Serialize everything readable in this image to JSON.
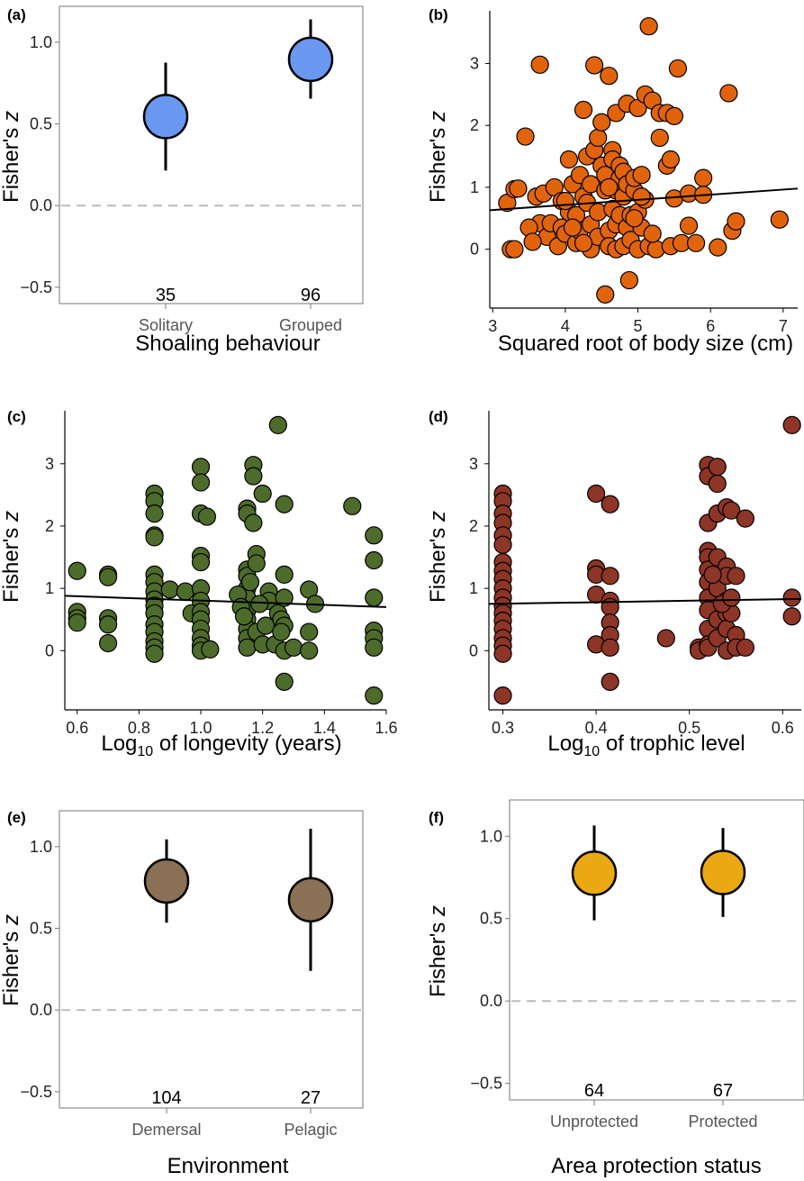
{
  "chart_data": [
    {
      "panel": "(a)",
      "type": "dot-errorbar",
      "xlabel": "Shoaling behaviour",
      "ylabel": "Fisher's z",
      "ylim": [
        -0.6,
        1.22
      ],
      "yticks": [
        -0.5,
        0.0,
        0.5,
        1.0
      ],
      "ytick_labels": [
        "−0.5",
        "0.0",
        "0.5",
        "1.0"
      ],
      "categories": [
        "Solitary",
        "Grouped"
      ],
      "estimates": [
        0.545,
        0.895
      ],
      "ci_low": [
        0.215,
        0.655
      ],
      "ci_high": [
        0.875,
        1.14
      ],
      "n": [
        "35",
        "96"
      ],
      "reference_line": 0.0,
      "color": "#6a97ef"
    },
    {
      "panel": "(b)",
      "type": "scatter",
      "xlabel": "Squared root of body size (cm)",
      "ylabel": "Fisher's z",
      "xlim": [
        2.96,
        7.2
      ],
      "ylim": [
        -0.95,
        3.85
      ],
      "xticks": [
        3,
        4,
        5,
        6,
        7
      ],
      "xtick_labels": [
        "3",
        "4",
        "5",
        "6",
        "7"
      ],
      "yticks": [
        0,
        1,
        2,
        3
      ],
      "ytick_labels": [
        "0",
        "1",
        "2",
        "3"
      ],
      "trend": {
        "x": [
          2.96,
          7.2
        ],
        "y": [
          0.63,
          0.98
        ]
      },
      "points": [
        [
          3.2,
          0.75
        ],
        [
          3.25,
          0.0
        ],
        [
          3.3,
          0.0
        ],
        [
          3.3,
          0.97
        ],
        [
          3.35,
          0.98
        ],
        [
          3.45,
          1.82
        ],
        [
          3.6,
          0.85
        ],
        [
          3.65,
          2.98
        ],
        [
          3.65,
          0.42
        ],
        [
          3.7,
          0.9
        ],
        [
          3.75,
          0.2
        ],
        [
          3.8,
          0.42
        ],
        [
          3.85,
          1.0
        ],
        [
          3.9,
          0.05
        ],
        [
          3.95,
          0.78
        ],
        [
          3.95,
          0.35
        ],
        [
          4.0,
          0.25
        ],
        [
          4.05,
          0.6
        ],
        [
          4.05,
          1.45
        ],
        [
          4.1,
          1.05
        ],
        [
          4.15,
          0.1
        ],
        [
          4.15,
          0.55
        ],
        [
          4.2,
          1.2
        ],
        [
          4.2,
          0.3
        ],
        [
          4.25,
          2.25
        ],
        [
          4.25,
          0.85
        ],
        [
          4.3,
          1.5
        ],
        [
          4.3,
          0.75
        ],
        [
          4.35,
          1.05
        ],
        [
          4.35,
          0.4
        ],
        [
          4.35,
          0.0
        ],
        [
          4.4,
          1.6
        ],
        [
          4.4,
          2.97
        ],
        [
          4.45,
          1.8
        ],
        [
          4.45,
          0.6
        ],
        [
          4.45,
          0.2
        ],
        [
          4.5,
          1.35
        ],
        [
          4.5,
          2.05
        ],
        [
          4.55,
          0.95
        ],
        [
          4.55,
          1.2
        ],
        [
          4.6,
          0.3
        ],
        [
          4.6,
          2.8
        ],
        [
          4.6,
          0.05
        ],
        [
          4.65,
          1.6
        ],
        [
          4.65,
          0.65
        ],
        [
          4.65,
          1.45
        ],
        [
          4.7,
          0.4
        ],
        [
          4.7,
          2.2
        ],
        [
          4.7,
          0.0
        ],
        [
          4.7,
          0.95
        ],
        [
          4.75,
          1.15
        ],
        [
          4.75,
          0.55
        ],
        [
          4.75,
          1.35
        ],
        [
          4.8,
          0.05
        ],
        [
          4.8,
          0.85
        ],
        [
          4.8,
          1.25
        ],
        [
          4.85,
          2.35
        ],
        [
          4.85,
          1.05
        ],
        [
          4.85,
          0.35
        ],
        [
          4.9,
          0.55
        ],
        [
          4.9,
          0.15
        ],
        [
          4.95,
          0.95
        ],
        [
          4.95,
          1.15
        ],
        [
          5.0,
          2.28
        ],
        [
          5.0,
          0.6
        ],
        [
          5.0,
          0.0
        ],
        [
          5.05,
          1.2
        ],
        [
          5.05,
          0.35
        ],
        [
          5.1,
          0.8
        ],
        [
          5.1,
          2.5
        ],
        [
          5.15,
          3.6
        ],
        [
          5.15,
          0.05
        ],
        [
          5.2,
          2.4
        ],
        [
          5.25,
          0.0
        ],
        [
          5.3,
          2.2
        ],
        [
          5.3,
          1.8
        ],
        [
          5.4,
          2.2
        ],
        [
          5.4,
          1.35
        ],
        [
          5.45,
          1.45
        ],
        [
          5.45,
          0.05
        ],
        [
          5.5,
          2.15
        ],
        [
          5.5,
          0.82
        ],
        [
          5.55,
          2.92
        ],
        [
          5.6,
          0.1
        ],
        [
          5.7,
          0.9
        ],
        [
          5.7,
          0.38
        ],
        [
          5.8,
          0.1
        ],
        [
          5.9,
          1.15
        ],
        [
          5.9,
          0.88
        ],
        [
          6.1,
          0.03
        ],
        [
          6.25,
          2.52
        ],
        [
          6.3,
          0.3
        ],
        [
          6.35,
          0.45
        ],
        [
          6.95,
          0.48
        ],
        [
          4.55,
          -0.73
        ],
        [
          4.88,
          -0.5
        ],
        [
          3.5,
          0.35
        ],
        [
          3.55,
          0.12
        ],
        [
          4.0,
          0.78
        ],
        [
          4.1,
          0.35
        ],
        [
          4.6,
          1.0
        ],
        [
          4.95,
          0.5
        ],
        [
          5.05,
          0.85
        ],
        [
          5.2,
          0.25
        ],
        [
          4.25,
          0.1
        ]
      ]
    },
    {
      "panel": "(c)",
      "type": "scatter",
      "xlabel": "Log10 of longevity (years)",
      "ylabel": "Fisher's z",
      "xlim": [
        0.56,
        1.6
      ],
      "ylim": [
        -0.95,
        3.85
      ],
      "xticks": [
        0.6,
        0.8,
        1.0,
        1.2,
        1.4,
        1.6
      ],
      "xtick_labels": [
        "0.6",
        "0.8",
        "1.0",
        "1.2",
        "1.4",
        "1.6"
      ],
      "yticks": [
        0,
        1,
        2,
        3
      ],
      "ytick_labels": [
        "0",
        "1",
        "2",
        "3"
      ],
      "trend": {
        "x": [
          0.56,
          1.6
        ],
        "y": [
          0.88,
          0.7
        ]
      },
      "points": [
        [
          0.6,
          1.28
        ],
        [
          0.6,
          0.62
        ],
        [
          0.6,
          0.52
        ],
        [
          0.6,
          0.45
        ],
        [
          0.7,
          1.22
        ],
        [
          0.7,
          1.18
        ],
        [
          0.7,
          0.52
        ],
        [
          0.7,
          0.42
        ],
        [
          0.7,
          0.12
        ],
        [
          0.85,
          2.52
        ],
        [
          0.85,
          2.4
        ],
        [
          0.85,
          2.2
        ],
        [
          0.85,
          1.85
        ],
        [
          0.85,
          1.82
        ],
        [
          0.85,
          1.22
        ],
        [
          0.85,
          1.1
        ],
        [
          0.85,
          0.95
        ],
        [
          0.85,
          0.82
        ],
        [
          0.85,
          0.72
        ],
        [
          0.85,
          0.6
        ],
        [
          0.85,
          0.42
        ],
        [
          0.85,
          0.3
        ],
        [
          0.85,
          0.15
        ],
        [
          0.85,
          0.05
        ],
        [
          0.85,
          -0.05
        ],
        [
          0.9,
          0.98
        ],
        [
          0.95,
          0.95
        ],
        [
          0.97,
          0.6
        ],
        [
          1.0,
          2.95
        ],
        [
          1.0,
          2.7
        ],
        [
          1.0,
          2.2
        ],
        [
          1.0,
          1.52
        ],
        [
          1.0,
          1.42
        ],
        [
          1.0,
          1.0
        ],
        [
          1.0,
          0.8
        ],
        [
          1.0,
          0.62
        ],
        [
          1.0,
          0.5
        ],
        [
          1.0,
          0.35
        ],
        [
          1.0,
          0.2
        ],
        [
          1.0,
          0.08
        ],
        [
          1.0,
          0.0
        ],
        [
          1.02,
          2.15
        ],
        [
          1.03,
          0.02
        ],
        [
          1.15,
          2.28
        ],
        [
          1.15,
          2.2
        ],
        [
          1.15,
          1.3
        ],
        [
          1.15,
          1.2
        ],
        [
          1.15,
          1.0
        ],
        [
          1.15,
          0.85
        ],
        [
          1.15,
          0.65
        ],
        [
          1.15,
          0.5
        ],
        [
          1.15,
          0.35
        ],
        [
          1.15,
          0.2
        ],
        [
          1.15,
          0.05
        ],
        [
          1.17,
          2.98
        ],
        [
          1.17,
          2.8
        ],
        [
          1.17,
          2.05
        ],
        [
          1.18,
          1.55
        ],
        [
          1.18,
          1.4
        ],
        [
          1.18,
          0.3
        ],
        [
          1.2,
          2.52
        ],
        [
          1.2,
          0.1
        ],
        [
          1.22,
          0.95
        ],
        [
          1.22,
          0.8
        ],
        [
          1.24,
          0.1
        ],
        [
          1.25,
          3.62
        ],
        [
          1.25,
          0.6
        ],
        [
          1.26,
          0.5
        ],
        [
          1.27,
          2.35
        ],
        [
          1.27,
          1.22
        ],
        [
          1.27,
          0.85
        ],
        [
          1.27,
          0.4
        ],
        [
          1.27,
          0.0
        ],
        [
          1.27,
          -0.5
        ],
        [
          1.3,
          0.05
        ],
        [
          1.35,
          0.98
        ],
        [
          1.35,
          0.3
        ],
        [
          1.35,
          0.0
        ],
        [
          1.37,
          0.75
        ],
        [
          1.49,
          2.32
        ],
        [
          1.56,
          1.85
        ],
        [
          1.56,
          1.45
        ],
        [
          1.56,
          0.85
        ],
        [
          1.56,
          0.32
        ],
        [
          1.56,
          0.2
        ],
        [
          1.56,
          0.05
        ],
        [
          1.56,
          -0.72
        ],
        [
          1.12,
          0.9
        ],
        [
          1.13,
          0.7
        ],
        [
          1.14,
          0.55
        ],
        [
          1.16,
          1.1
        ],
        [
          1.19,
          0.75
        ],
        [
          1.21,
          0.4
        ],
        [
          1.26,
          0.3
        ]
      ]
    },
    {
      "panel": "(d)",
      "type": "scatter",
      "xlabel": "Log10 of trophic level",
      "ylabel": "Fisher's z",
      "xlim": [
        0.285,
        0.62
      ],
      "ylim": [
        -0.95,
        3.85
      ],
      "xticks": [
        0.3,
        0.4,
        0.5,
        0.6
      ],
      "xtick_labels": [
        "0.3",
        "0.4",
        "0.5",
        "0.6"
      ],
      "yticks": [
        0,
        1,
        2,
        3
      ],
      "ytick_labels": [
        "0",
        "1",
        "2",
        "3"
      ],
      "trend": {
        "x": [
          0.285,
          0.62
        ],
        "y": [
          0.75,
          0.83
        ]
      },
      "points": [
        [
          0.3,
          2.52
        ],
        [
          0.3,
          2.4
        ],
        [
          0.3,
          2.2
        ],
        [
          0.3,
          2.05
        ],
        [
          0.3,
          1.85
        ],
        [
          0.3,
          1.7
        ],
        [
          0.3,
          1.42
        ],
        [
          0.3,
          1.28
        ],
        [
          0.3,
          1.15
        ],
        [
          0.3,
          1.0
        ],
        [
          0.3,
          0.85
        ],
        [
          0.3,
          0.72
        ],
        [
          0.3,
          0.6
        ],
        [
          0.3,
          0.48
        ],
        [
          0.3,
          0.35
        ],
        [
          0.3,
          0.2
        ],
        [
          0.3,
          0.08
        ],
        [
          0.3,
          -0.05
        ],
        [
          0.3,
          -0.72
        ],
        [
          0.4,
          2.52
        ],
        [
          0.4,
          1.32
        ],
        [
          0.4,
          1.22
        ],
        [
          0.4,
          0.9
        ],
        [
          0.4,
          0.1
        ],
        [
          0.415,
          2.35
        ],
        [
          0.415,
          1.2
        ],
        [
          0.415,
          0.8
        ],
        [
          0.415,
          0.7
        ],
        [
          0.415,
          0.45
        ],
        [
          0.415,
          0.25
        ],
        [
          0.415,
          0.05
        ],
        [
          0.415,
          -0.5
        ],
        [
          0.475,
          0.2
        ],
        [
          0.51,
          0.05
        ],
        [
          0.51,
          0.0
        ],
        [
          0.52,
          2.98
        ],
        [
          0.52,
          2.8
        ],
        [
          0.52,
          2.05
        ],
        [
          0.52,
          1.6
        ],
        [
          0.52,
          1.5
        ],
        [
          0.52,
          1.3
        ],
        [
          0.52,
          1.1
        ],
        [
          0.52,
          0.85
        ],
        [
          0.52,
          0.65
        ],
        [
          0.52,
          0.35
        ],
        [
          0.52,
          0.1
        ],
        [
          0.52,
          0.05
        ],
        [
          0.53,
          2.95
        ],
        [
          0.53,
          2.68
        ],
        [
          0.53,
          2.2
        ],
        [
          0.53,
          1.5
        ],
        [
          0.53,
          1.0
        ],
        [
          0.53,
          0.5
        ],
        [
          0.53,
          0.2
        ],
        [
          0.54,
          2.3
        ],
        [
          0.54,
          1.35
        ],
        [
          0.54,
          1.2
        ],
        [
          0.54,
          0.8
        ],
        [
          0.54,
          0.6
        ],
        [
          0.54,
          0.35
        ],
        [
          0.54,
          0.0
        ],
        [
          0.545,
          2.25
        ],
        [
          0.545,
          0.6
        ],
        [
          0.55,
          1.2
        ],
        [
          0.55,
          0.25
        ],
        [
          0.55,
          0.05
        ],
        [
          0.56,
          2.12
        ],
        [
          0.56,
          0.05
        ],
        [
          0.61,
          3.62
        ],
        [
          0.61,
          0.85
        ],
        [
          0.61,
          0.55
        ],
        [
          0.525,
          1.22
        ],
        [
          0.535,
          0.75
        ],
        [
          0.545,
          0.85
        ]
      ]
    },
    {
      "panel": "(e)",
      "type": "dot-errorbar",
      "xlabel": "Environment",
      "ylabel": "Fisher's z",
      "ylim": [
        -0.6,
        1.22
      ],
      "yticks": [
        -0.5,
        0.0,
        0.5,
        1.0
      ],
      "ytick_labels": [
        "−0.5",
        "0.0",
        "0.5",
        "1.0"
      ],
      "categories": [
        "Demersal",
        "Pelagic"
      ],
      "estimates": [
        0.79,
        0.675
      ],
      "ci_low": [
        0.535,
        0.24
      ],
      "ci_high": [
        1.045,
        1.11
      ],
      "n": [
        "104",
        "27"
      ],
      "reference_line": 0.0,
      "color": "#8a7054"
    },
    {
      "panel": "(f)",
      "type": "dot-errorbar",
      "xlabel": "Area protection status",
      "ylabel": "Fisher's z",
      "ylim": [
        -0.6,
        1.22
      ],
      "yticks": [
        -0.5,
        0.0,
        0.5,
        1.0
      ],
      "ytick_labels": [
        "−0.5",
        "0.0",
        "0.5",
        "1.0"
      ],
      "categories": [
        "Unprotected",
        "Protected"
      ],
      "estimates": [
        0.775,
        0.78
      ],
      "ci_low": [
        0.49,
        0.51
      ],
      "ci_high": [
        1.065,
        1.05
      ],
      "n": [
        "64",
        "67"
      ],
      "reference_line": 0.0,
      "color": "#eaa912"
    }
  ],
  "scatter_colors": {
    "(b)": "#e1640c",
    "(c)": "#4d6b2a",
    "(d)": "#8d3526"
  }
}
